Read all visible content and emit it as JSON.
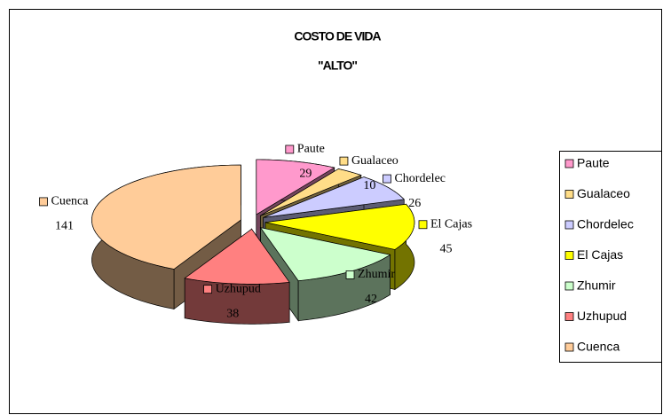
{
  "chart_data": {
    "type": "pie3d",
    "title": "COSTO DE VIDA",
    "subtitle": "\"ALTO\"",
    "categories": [
      "Paute",
      "Gualaceo",
      "Chordelec",
      "El Cajas",
      "Zhumir",
      "Uzhupud",
      "Cuenca"
    ],
    "values": [
      29,
      10,
      26,
      45,
      42,
      38,
      141
    ],
    "colors": [
      "#ff99cc",
      "#ffdd88",
      "#ccccff",
      "#ffff00",
      "#ccffcc",
      "#ff8080",
      "#ffcc99"
    ],
    "legend": "right"
  }
}
